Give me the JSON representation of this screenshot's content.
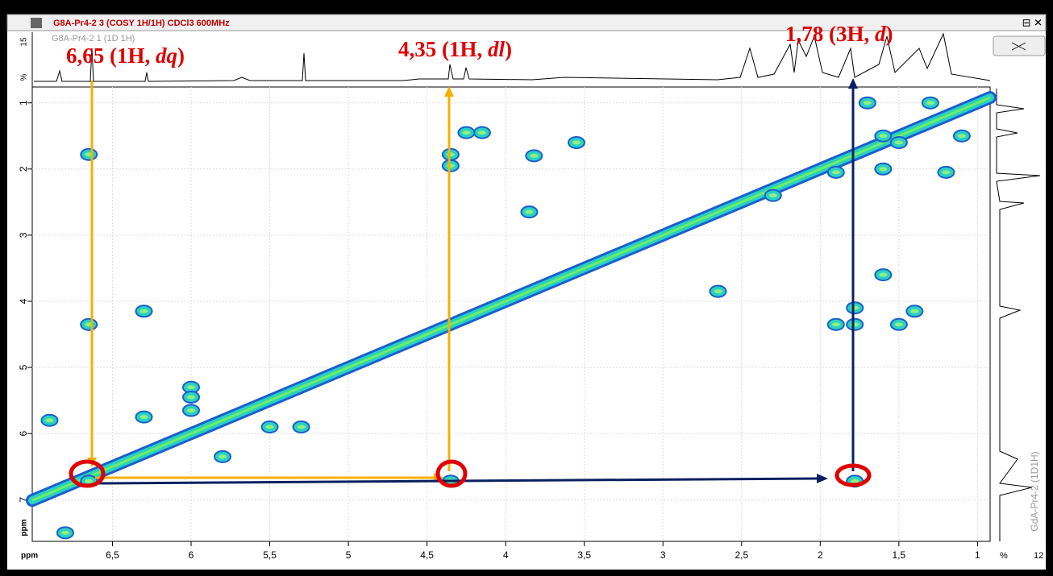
{
  "window": {
    "title": "G8A-Pr4-2 3 (COSY 1H/1H) CDCl3 600MHz",
    "controls": "⊟ ✕"
  },
  "top_trace": {
    "label": "G8A-Pr4-2 1 (1D 1H)",
    "scale_max": "15",
    "scale_unit": "%"
  },
  "right_trace": {
    "label": "GdA-Pr4-2 (1D1H)",
    "scale_unit": "%",
    "scale_max": "12"
  },
  "x_axis": {
    "unit": "ppm",
    "lim": [
      7.01,
      0.92
    ],
    "ticks": [
      {
        "value": 6.5,
        "label": "6,5"
      },
      6,
      {
        "value": 5.5,
        "label": "5,5"
      },
      5,
      {
        "value": 4.5,
        "label": "4,5"
      },
      4,
      {
        "value": 3.5,
        "label": "3,5"
      },
      3,
      {
        "value": 2.5,
        "label": "2,5"
      },
      2,
      {
        "value": 1.5,
        "label": "1,5"
      },
      1
    ]
  },
  "y_axis": {
    "unit": "ppm",
    "lim": [
      0.76,
      7.63
    ],
    "ticks": [
      1,
      2,
      3,
      4,
      5,
      6,
      7
    ]
  },
  "annotations": [
    {
      "before": "6,65 (1H, ",
      "italic": "dq",
      "after": ")"
    },
    {
      "before": "4,35 (1H, ",
      "italic": "dl",
      "after": ")"
    },
    {
      "before": "1,78 (3H, ",
      "italic": "d",
      "after": ")"
    }
  ],
  "cross_peaks": [
    {
      "x": 6.65,
      "y": 1.78
    },
    {
      "x": 6.65,
      "y": 4.35
    },
    {
      "x": 6.65,
      "y": 6.72
    },
    {
      "x": 4.35,
      "y": 1.78
    },
    {
      "x": 4.35,
      "y": 1.95
    },
    {
      "x": 4.35,
      "y": 6.72
    },
    {
      "x": 1.78,
      "y": 6.72
    },
    {
      "x": 1.78,
      "y": 4.35
    },
    {
      "x": 1.78,
      "y": 4.1
    },
    {
      "x": 4.15,
      "y": 1.45
    },
    {
      "x": 4.25,
      "y": 1.45
    },
    {
      "x": 3.85,
      "y": 2.65
    },
    {
      "x": 3.55,
      "y": 1.6
    },
    {
      "x": 3.82,
      "y": 1.8
    },
    {
      "x": 6.3,
      "y": 4.15
    },
    {
      "x": 6.0,
      "y": 5.3
    },
    {
      "x": 6.0,
      "y": 5.45
    },
    {
      "x": 6.0,
      "y": 5.65
    },
    {
      "x": 6.3,
      "y": 5.75
    },
    {
      "x": 5.8,
      "y": 6.35
    },
    {
      "x": 5.5,
      "y": 5.9
    },
    {
      "x": 5.3,
      "y": 5.9
    },
    {
      "x": 6.9,
      "y": 5.8
    },
    {
      "x": 6.8,
      "y": 7.5
    },
    {
      "x": 2.65,
      "y": 3.85
    },
    {
      "x": 1.3,
      "y": 1.0
    },
    {
      "x": 1.7,
      "y": 1.0
    },
    {
      "x": 1.5,
      "y": 1.6
    },
    {
      "x": 1.1,
      "y": 1.5
    },
    {
      "x": 1.9,
      "y": 2.05
    },
    {
      "x": 1.6,
      "y": 2.0
    },
    {
      "x": 1.4,
      "y": 4.15
    },
    {
      "x": 1.5,
      "y": 4.35
    },
    {
      "x": 1.9,
      "y": 4.35
    },
    {
      "x": 1.6,
      "y": 1.5
    },
    {
      "x": 2.3,
      "y": 2.4
    },
    {
      "x": 1.2,
      "y": 2.05
    },
    {
      "x": 1.6,
      "y": 3.6
    }
  ]
}
